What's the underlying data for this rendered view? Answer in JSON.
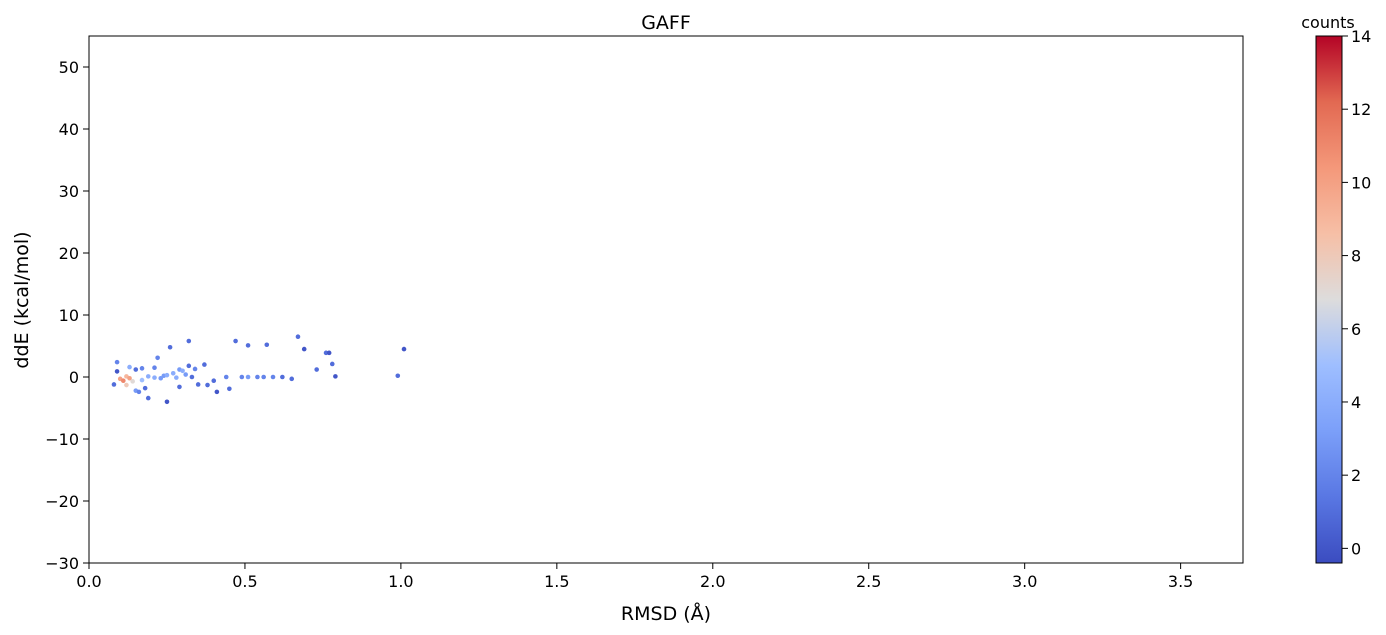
{
  "chart_data": {
    "type": "scatter",
    "title": "GAFF",
    "xlabel": "RMSD (Å)",
    "ylabel": "ddE (kcal/mol)",
    "xlim": [
      0.0,
      3.7
    ],
    "ylim": [
      -30,
      55
    ],
    "xticks": [
      0.0,
      0.5,
      1.0,
      1.5,
      2.0,
      2.5,
      3.0,
      3.5
    ],
    "xtick_labels": [
      "0.0",
      "0.5",
      "1.0",
      "1.5",
      "2.0",
      "2.5",
      "3.0",
      "3.5"
    ],
    "yticks": [
      -30,
      -20,
      -10,
      0,
      10,
      20,
      30,
      40,
      50
    ],
    "ytick_labels": [
      "−30",
      "−20",
      "−10",
      "0",
      "10",
      "20",
      "30",
      "40",
      "50"
    ],
    "grid": false,
    "colormap": "coolwarm",
    "colorbar": {
      "label": "counts",
      "range": [
        -0.4,
        14
      ],
      "ticks": [
        0,
        2,
        4,
        6,
        8,
        10,
        12,
        14
      ],
      "tick_labels": [
        "0",
        "2",
        "4",
        "6",
        "8",
        "10",
        "12",
        "14"
      ]
    },
    "points": [
      {
        "x": 0.08,
        "y": -1.2,
        "c": 1
      },
      {
        "x": 0.09,
        "y": 0.9,
        "c": 0
      },
      {
        "x": 0.09,
        "y": 2.4,
        "c": 2
      },
      {
        "x": 0.1,
        "y": -0.3,
        "c": 10
      },
      {
        "x": 0.11,
        "y": -0.6,
        "c": 11
      },
      {
        "x": 0.12,
        "y": 0.1,
        "c": 9
      },
      {
        "x": 0.13,
        "y": -0.2,
        "c": 10
      },
      {
        "x": 0.12,
        "y": -1.3,
        "c": 8
      },
      {
        "x": 0.14,
        "y": -0.7,
        "c": 7
      },
      {
        "x": 0.13,
        "y": 1.6,
        "c": 4
      },
      {
        "x": 0.15,
        "y": 1.2,
        "c": 1
      },
      {
        "x": 0.15,
        "y": -2.2,
        "c": 3
      },
      {
        "x": 0.16,
        "y": -2.4,
        "c": 2
      },
      {
        "x": 0.17,
        "y": 1.4,
        "c": 2
      },
      {
        "x": 0.17,
        "y": -0.5,
        "c": 5
      },
      {
        "x": 0.18,
        "y": -1.8,
        "c": 1
      },
      {
        "x": 0.19,
        "y": 0.1,
        "c": 4
      },
      {
        "x": 0.19,
        "y": -3.4,
        "c": 1
      },
      {
        "x": 0.21,
        "y": 1.5,
        "c": 2
      },
      {
        "x": 0.21,
        "y": -0.1,
        "c": 4
      },
      {
        "x": 0.22,
        "y": 3.1,
        "c": 2
      },
      {
        "x": 0.23,
        "y": -0.2,
        "c": 3
      },
      {
        "x": 0.24,
        "y": 0.2,
        "c": 3
      },
      {
        "x": 0.25,
        "y": 0.3,
        "c": 4
      },
      {
        "x": 0.26,
        "y": 4.8,
        "c": 1
      },
      {
        "x": 0.25,
        "y": -4.0,
        "c": 0
      },
      {
        "x": 0.27,
        "y": 0.6,
        "c": 4
      },
      {
        "x": 0.28,
        "y": -0.1,
        "c": 4
      },
      {
        "x": 0.29,
        "y": 1.2,
        "c": 3
      },
      {
        "x": 0.29,
        "y": -1.6,
        "c": 1
      },
      {
        "x": 0.3,
        "y": 1.0,
        "c": 4
      },
      {
        "x": 0.31,
        "y": 0.4,
        "c": 3
      },
      {
        "x": 0.32,
        "y": 1.8,
        "c": 1
      },
      {
        "x": 0.32,
        "y": 5.8,
        "c": 1
      },
      {
        "x": 0.33,
        "y": 0.0,
        "c": 1
      },
      {
        "x": 0.34,
        "y": 1.3,
        "c": 2
      },
      {
        "x": 0.35,
        "y": -1.2,
        "c": 1
      },
      {
        "x": 0.37,
        "y": 2.0,
        "c": 1
      },
      {
        "x": 0.38,
        "y": -1.3,
        "c": 1
      },
      {
        "x": 0.4,
        "y": -0.6,
        "c": 1
      },
      {
        "x": 0.41,
        "y": -2.4,
        "c": 0
      },
      {
        "x": 0.44,
        "y": 0.0,
        "c": 2
      },
      {
        "x": 0.45,
        "y": -1.9,
        "c": 1
      },
      {
        "x": 0.47,
        "y": 5.8,
        "c": 1
      },
      {
        "x": 0.49,
        "y": 0.0,
        "c": 2
      },
      {
        "x": 0.51,
        "y": 0.0,
        "c": 3
      },
      {
        "x": 0.51,
        "y": 5.1,
        "c": 1
      },
      {
        "x": 0.54,
        "y": 0.0,
        "c": 2
      },
      {
        "x": 0.56,
        "y": 0.0,
        "c": 2
      },
      {
        "x": 0.57,
        "y": 5.2,
        "c": 1
      },
      {
        "x": 0.59,
        "y": 0.0,
        "c": 2
      },
      {
        "x": 0.62,
        "y": 0.0,
        "c": 1
      },
      {
        "x": 0.65,
        "y": -0.3,
        "c": 1
      },
      {
        "x": 0.67,
        "y": 6.5,
        "c": 1
      },
      {
        "x": 0.69,
        "y": 4.5,
        "c": 0
      },
      {
        "x": 0.73,
        "y": 1.2,
        "c": 1
      },
      {
        "x": 0.76,
        "y": 3.9,
        "c": 1
      },
      {
        "x": 0.77,
        "y": 3.9,
        "c": 0
      },
      {
        "x": 0.78,
        "y": 2.1,
        "c": 1
      },
      {
        "x": 0.79,
        "y": 0.1,
        "c": 0
      },
      {
        "x": 0.99,
        "y": 0.2,
        "c": 1
      },
      {
        "x": 1.01,
        "y": 4.5,
        "c": 0
      }
    ]
  }
}
